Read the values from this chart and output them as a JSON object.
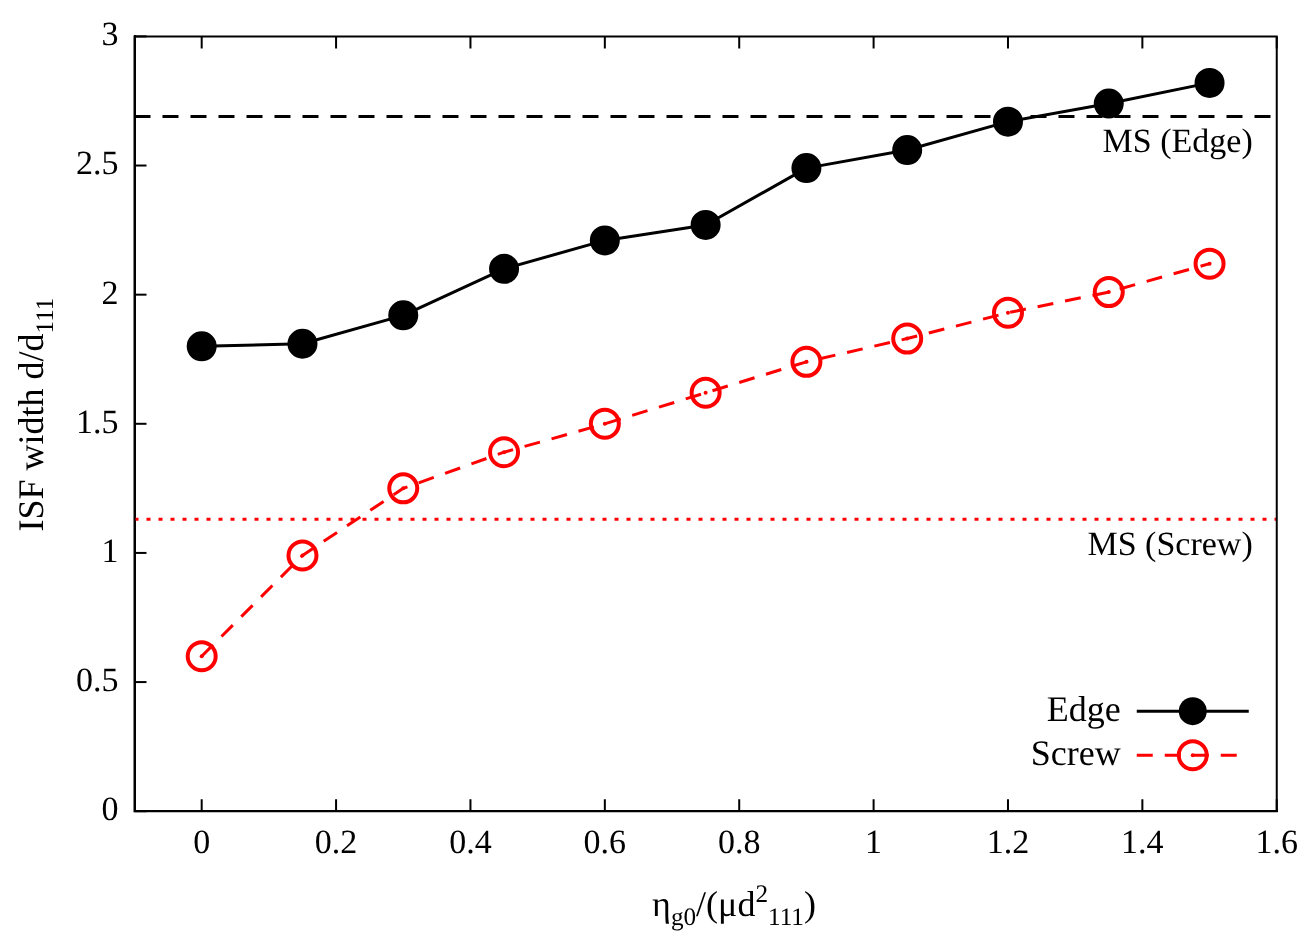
{
  "chart_data": {
    "type": "line",
    "xlabel": "η$_{g0}$/(μd$^{2}$$_{111}$)",
    "ylabel": "ISF width d/d$_{111}$",
    "x": [
      0,
      0.15,
      0.3,
      0.45,
      0.6,
      0.75,
      0.9,
      1.05,
      1.2,
      1.35,
      1.5
    ],
    "series": [
      {
        "name": "Edge",
        "color": "#000000",
        "line_style": "solid",
        "values": [
          1.8,
          1.81,
          1.92,
          2.1,
          2.21,
          2.27,
          2.49,
          2.56,
          2.67,
          2.74,
          2.82
        ]
      },
      {
        "name": "Screw",
        "color": "#ff0000",
        "line_style": "dashed",
        "values": [
          0.6,
          0.99,
          1.25,
          1.39,
          1.5,
          1.62,
          1.74,
          1.83,
          1.93,
          2.01,
          2.12
        ]
      }
    ],
    "ref_lines": [
      {
        "axis": "y",
        "value": 2.69,
        "label": "MS (Edge)",
        "color": "#000000",
        "line_style": "dashed"
      },
      {
        "axis": "y",
        "value": 1.13,
        "label": "MS (Screw)",
        "color": "#ff0000",
        "line_style": "dotted"
      }
    ],
    "xlim": [
      -0.1,
      1.6
    ],
    "xticks": [
      0,
      0.2,
      0.4,
      0.6,
      0.8,
      1,
      1.2,
      1.4,
      1.6
    ],
    "ylim": [
      0,
      3
    ],
    "yticks": [
      0,
      0.5,
      1,
      1.5,
      2,
      2.5,
      3
    ],
    "grid": false,
    "legend": "bottom right",
    "marker": "circle"
  }
}
